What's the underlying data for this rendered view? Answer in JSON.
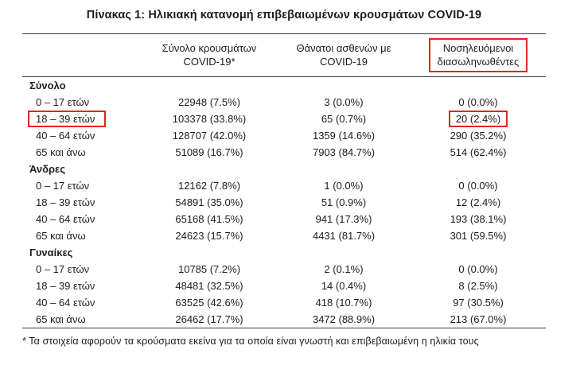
{
  "title": "Πίνακας 1: Ηλικιακή κατανομή επιβεβαιωμένων κρουσμάτων COVID-19",
  "header": {
    "col_cases": {
      "line1": "Σύνολο κρουσμάτων",
      "line2": "COVID-19*"
    },
    "col_deaths": {
      "line1": "Θάνατοι ασθενών με",
      "line2": "COVID-19"
    },
    "col_intubated": {
      "line1": "Νοσηλευόμενοι",
      "line2": "διασωληνωθέντες"
    }
  },
  "groups": [
    {
      "name": "Σύνολο",
      "rows": [
        {
          "label": "0 – 17 ετών",
          "cases": "22948 (7.5%)",
          "deaths": "3 (0.0%)",
          "intubated": "0 (0.0%)"
        },
        {
          "label": "18 – 39 ετών",
          "cases": "103378 (33.8%)",
          "deaths": "65 (0.7%)",
          "intubated": "20 (2.4%)"
        },
        {
          "label": "40 – 64 ετών",
          "cases": "128707 (42.0%)",
          "deaths": "1359 (14.6%)",
          "intubated": "290 (35.2%)"
        },
        {
          "label": "65 και άνω",
          "cases": "51089 (16.7%)",
          "deaths": "7903 (84.7%)",
          "intubated": "514 (62.4%)"
        }
      ]
    },
    {
      "name": "Άνδρες",
      "rows": [
        {
          "label": "0 – 17 ετών",
          "cases": "12162 (7.8%)",
          "deaths": "1 (0.0%)",
          "intubated": "0 (0.0%)"
        },
        {
          "label": "18 – 39 ετών",
          "cases": "54891 (35.0%)",
          "deaths": "51 (0.9%)",
          "intubated": "12 (2.4%)"
        },
        {
          "label": "40 – 64 ετών",
          "cases": "65168 (41.5%)",
          "deaths": "941 (17.3%)",
          "intubated": "193 (38.1%)"
        },
        {
          "label": "65 και άνω",
          "cases": "24623 (15.7%)",
          "deaths": "4431 (81.7%)",
          "intubated": "301 (59.5%)"
        }
      ]
    },
    {
      "name": "Γυναίκες",
      "rows": [
        {
          "label": "0 – 17 ετών",
          "cases": "10785 (7.2%)",
          "deaths": "2 (0.1%)",
          "intubated": "0 (0.0%)"
        },
        {
          "label": "18 – 39 ετών",
          "cases": "48481 (32.5%)",
          "deaths": "14 (0.4%)",
          "intubated": "8 (2.5%)"
        },
        {
          "label": "40 – 64 ετών",
          "cases": "63525 (42.6%)",
          "deaths": "418 (10.7%)",
          "intubated": "97 (30.5%)"
        },
        {
          "label": "65 και άνω",
          "cases": "26462 (17.7%)",
          "deaths": "3472 (88.9%)",
          "intubated": "213 (67.0%)"
        }
      ]
    }
  ],
  "footnote": "* Τα στοιχεία αφορούν τα κρούσματα εκείνα για τα οποία είναι γνωστή και επιβεβαιωμένη η ηλικία τους",
  "highlights": [
    "intubated-column-header",
    "total-18-39-row-label",
    "total-18-39-intubated-value"
  ],
  "colors": {
    "highlight_red": "#e1251f",
    "text": "#1d1d1b",
    "rule": "#3b3b3b"
  }
}
